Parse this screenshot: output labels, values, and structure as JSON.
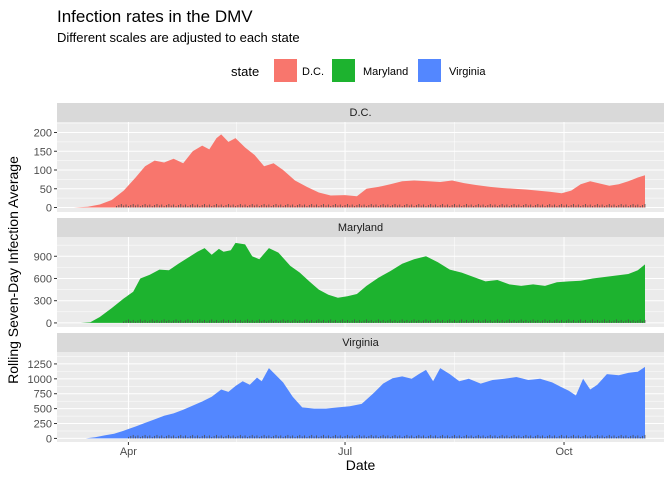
{
  "chart_data": {
    "type": "area",
    "title": "Infection rates in the DMV",
    "subtitle": "Different scales are adjusted to each state",
    "xlabel": "Date",
    "ylabel": "Rolling Seven-Day Infection Average",
    "x_ticks": [
      "Apr",
      "Jul",
      "Oct"
    ],
    "x_tick_dates": [
      "2020-04-01",
      "2020-07-01",
      "2020-10-01"
    ],
    "xlim": [
      "2020-03-02",
      "2020-11-12"
    ],
    "legend": {
      "title": "state",
      "position": "top"
    },
    "grid": true,
    "facets": [
      {
        "name": "D.C.",
        "color": "#F8766D",
        "ylim": [
          -12,
          228
        ],
        "y_ticks": [
          0,
          50,
          100,
          150,
          200
        ],
        "series": [
          [
            "2020-03-09",
            0
          ],
          [
            "2020-03-15",
            2
          ],
          [
            "2020-03-20",
            8
          ],
          [
            "2020-03-25",
            20
          ],
          [
            "2020-03-30",
            45
          ],
          [
            "2020-04-04",
            80
          ],
          [
            "2020-04-08",
            110
          ],
          [
            "2020-04-12",
            125
          ],
          [
            "2020-04-16",
            120
          ],
          [
            "2020-04-20",
            130
          ],
          [
            "2020-04-24",
            118
          ],
          [
            "2020-04-28",
            150
          ],
          [
            "2020-05-02",
            165
          ],
          [
            "2020-05-05",
            155
          ],
          [
            "2020-05-08",
            185
          ],
          [
            "2020-05-10",
            195
          ],
          [
            "2020-05-13",
            175
          ],
          [
            "2020-05-16",
            185
          ],
          [
            "2020-05-20",
            160
          ],
          [
            "2020-05-24",
            140
          ],
          [
            "2020-05-28",
            110
          ],
          [
            "2020-06-01",
            118
          ],
          [
            "2020-06-05",
            100
          ],
          [
            "2020-06-10",
            72
          ],
          [
            "2020-06-15",
            55
          ],
          [
            "2020-06-20",
            40
          ],
          [
            "2020-06-25",
            32
          ],
          [
            "2020-07-01",
            33
          ],
          [
            "2020-07-06",
            30
          ],
          [
            "2020-07-10",
            50
          ],
          [
            "2020-07-15",
            55
          ],
          [
            "2020-07-20",
            62
          ],
          [
            "2020-07-25",
            70
          ],
          [
            "2020-07-30",
            72
          ],
          [
            "2020-08-05",
            70
          ],
          [
            "2020-08-10",
            68
          ],
          [
            "2020-08-15",
            72
          ],
          [
            "2020-08-20",
            65
          ],
          [
            "2020-08-25",
            60
          ],
          [
            "2020-08-31",
            55
          ],
          [
            "2020-09-05",
            52
          ],
          [
            "2020-09-10",
            50
          ],
          [
            "2020-09-15",
            48
          ],
          [
            "2020-09-20",
            45
          ],
          [
            "2020-09-25",
            42
          ],
          [
            "2020-09-30",
            38
          ],
          [
            "2020-10-04",
            45
          ],
          [
            "2020-10-08",
            62
          ],
          [
            "2020-10-12",
            70
          ],
          [
            "2020-10-16",
            64
          ],
          [
            "2020-10-20",
            58
          ],
          [
            "2020-10-24",
            62
          ],
          [
            "2020-10-28",
            70
          ],
          [
            "2020-11-01",
            80
          ],
          [
            "2020-11-04",
            86
          ]
        ]
      },
      {
        "name": "Maryland",
        "color": "#1DB32F",
        "ylim": [
          -55,
          1160
        ],
        "y_ticks": [
          0,
          300,
          600,
          900
        ],
        "series": [
          [
            "2020-03-12",
            0
          ],
          [
            "2020-03-16",
            10
          ],
          [
            "2020-03-20",
            80
          ],
          [
            "2020-03-25",
            200
          ],
          [
            "2020-03-30",
            330
          ],
          [
            "2020-04-03",
            420
          ],
          [
            "2020-04-06",
            600
          ],
          [
            "2020-04-10",
            650
          ],
          [
            "2020-04-14",
            720
          ],
          [
            "2020-04-18",
            710
          ],
          [
            "2020-04-22",
            800
          ],
          [
            "2020-04-26",
            880
          ],
          [
            "2020-04-30",
            960
          ],
          [
            "2020-05-03",
            1010
          ],
          [
            "2020-05-06",
            920
          ],
          [
            "2020-05-09",
            1000
          ],
          [
            "2020-05-11",
            960
          ],
          [
            "2020-05-14",
            980
          ],
          [
            "2020-05-16",
            1080
          ],
          [
            "2020-05-20",
            1060
          ],
          [
            "2020-05-23",
            900
          ],
          [
            "2020-05-26",
            860
          ],
          [
            "2020-05-30",
            1010
          ],
          [
            "2020-06-03",
            950
          ],
          [
            "2020-06-08",
            770
          ],
          [
            "2020-06-12",
            680
          ],
          [
            "2020-06-16",
            560
          ],
          [
            "2020-06-20",
            450
          ],
          [
            "2020-06-24",
            380
          ],
          [
            "2020-06-28",
            340
          ],
          [
            "2020-07-02",
            360
          ],
          [
            "2020-07-06",
            390
          ],
          [
            "2020-07-10",
            500
          ],
          [
            "2020-07-15",
            610
          ],
          [
            "2020-07-20",
            700
          ],
          [
            "2020-07-25",
            800
          ],
          [
            "2020-07-30",
            860
          ],
          [
            "2020-08-04",
            900
          ],
          [
            "2020-08-09",
            820
          ],
          [
            "2020-08-14",
            720
          ],
          [
            "2020-08-19",
            680
          ],
          [
            "2020-08-24",
            620
          ],
          [
            "2020-08-29",
            560
          ],
          [
            "2020-09-03",
            580
          ],
          [
            "2020-09-08",
            520
          ],
          [
            "2020-09-13",
            500
          ],
          [
            "2020-09-18",
            520
          ],
          [
            "2020-09-23",
            500
          ],
          [
            "2020-09-28",
            550
          ],
          [
            "2020-10-03",
            560
          ],
          [
            "2020-10-08",
            570
          ],
          [
            "2020-10-13",
            600
          ],
          [
            "2020-10-18",
            620
          ],
          [
            "2020-10-23",
            640
          ],
          [
            "2020-10-28",
            660
          ],
          [
            "2020-11-01",
            710
          ],
          [
            "2020-11-04",
            790
          ]
        ]
      },
      {
        "name": "Virginia",
        "color": "#5387FF",
        "ylim": [
          -60,
          1450
        ],
        "y_ticks": [
          0,
          250,
          500,
          750,
          1000,
          1250
        ],
        "series": [
          [
            "2020-03-14",
            0
          ],
          [
            "2020-03-18",
            20
          ],
          [
            "2020-03-22",
            50
          ],
          [
            "2020-03-26",
            80
          ],
          [
            "2020-03-30",
            130
          ],
          [
            "2020-04-04",
            200
          ],
          [
            "2020-04-08",
            260
          ],
          [
            "2020-04-12",
            320
          ],
          [
            "2020-04-16",
            380
          ],
          [
            "2020-04-20",
            420
          ],
          [
            "2020-04-24",
            480
          ],
          [
            "2020-04-28",
            550
          ],
          [
            "2020-05-02",
            620
          ],
          [
            "2020-05-06",
            700
          ],
          [
            "2020-05-10",
            820
          ],
          [
            "2020-05-13",
            780
          ],
          [
            "2020-05-16",
            880
          ],
          [
            "2020-05-19",
            960
          ],
          [
            "2020-05-22",
            900
          ],
          [
            "2020-05-25",
            1020
          ],
          [
            "2020-05-27",
            960
          ],
          [
            "2020-05-30",
            1180
          ],
          [
            "2020-06-02",
            1060
          ],
          [
            "2020-06-05",
            940
          ],
          [
            "2020-06-09",
            700
          ],
          [
            "2020-06-13",
            520
          ],
          [
            "2020-06-18",
            500
          ],
          [
            "2020-06-23",
            500
          ],
          [
            "2020-06-28",
            520
          ],
          [
            "2020-07-03",
            540
          ],
          [
            "2020-07-08",
            580
          ],
          [
            "2020-07-13",
            760
          ],
          [
            "2020-07-17",
            920
          ],
          [
            "2020-07-21",
            1010
          ],
          [
            "2020-07-25",
            1040
          ],
          [
            "2020-07-29",
            1000
          ],
          [
            "2020-08-01",
            1080
          ],
          [
            "2020-08-04",
            1150
          ],
          [
            "2020-08-07",
            960
          ],
          [
            "2020-08-10",
            1180
          ],
          [
            "2020-08-14",
            1080
          ],
          [
            "2020-08-18",
            960
          ],
          [
            "2020-08-22",
            1000
          ],
          [
            "2020-08-27",
            920
          ],
          [
            "2020-09-01",
            980
          ],
          [
            "2020-09-06",
            1000
          ],
          [
            "2020-09-11",
            1030
          ],
          [
            "2020-09-16",
            980
          ],
          [
            "2020-09-21",
            1000
          ],
          [
            "2020-09-26",
            940
          ],
          [
            "2020-09-30",
            860
          ],
          [
            "2020-10-03",
            800
          ],
          [
            "2020-10-06",
            720
          ],
          [
            "2020-10-09",
            1000
          ],
          [
            "2020-10-12",
            820
          ],
          [
            "2020-10-15",
            900
          ],
          [
            "2020-10-19",
            1080
          ],
          [
            "2020-10-24",
            1060
          ],
          [
            "2020-10-28",
            1100
          ],
          [
            "2020-11-01",
            1120
          ],
          [
            "2020-11-04",
            1200
          ]
        ]
      }
    ]
  }
}
